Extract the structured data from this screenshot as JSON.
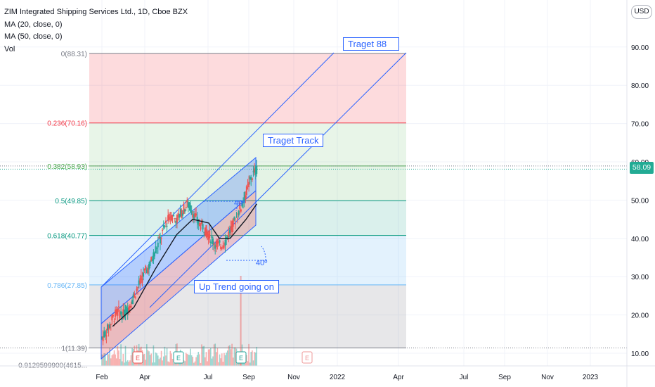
{
  "header": {
    "symbol_line": "ZIM Integrated Shipping Services Ltd., 1D, Cboe BZX",
    "ma20": "MA (20, close, 0)",
    "ma50": "MA (50, close, 0)",
    "vol": "Vol",
    "currency": "USD"
  },
  "last_price": "58.09",
  "annotations": {
    "target88": "Traget 88",
    "target_track": "Traget Track",
    "up_trend": "Up Trend going on",
    "angle_top": "40º",
    "angle_bottom": "40º"
  },
  "colors": {
    "up": "#26a69a",
    "down": "#ef5350",
    "ma": "#131722",
    "channel_line": "#2962ff",
    "fib_0": "#787b86",
    "fib_0236": "#f23645",
    "fib_0382": "#4caf50",
    "fib_05": "#089981",
    "fib_0618": "#089981",
    "fib_0786": "#64b5f6",
    "fib_1": "#787b86"
  },
  "chart_data": {
    "type": "candlestick",
    "y_axis": {
      "ticks": [
        "10.00",
        "20.00",
        "30.00",
        "40.00",
        "50.00",
        "60.00",
        "70.00",
        "80.00",
        "90.00"
      ],
      "range": [
        7,
        97
      ]
    },
    "x_axis": {
      "ticks": [
        "Feb",
        "Apr",
        "Jul",
        "Sep",
        "Nov",
        "2022",
        "Apr",
        "Jul",
        "Sep",
        "Nov",
        "2023"
      ]
    },
    "fib_levels": [
      {
        "label": "0(88.31)",
        "value": 88.31
      },
      {
        "label": "0.236(70.16)",
        "value": 70.16
      },
      {
        "label": "0.382(58.93)",
        "value": 58.93
      },
      {
        "label": "0.5(49.85)",
        "value": 49.85
      },
      {
        "label": "0.618(40.77)",
        "value": 40.77
      },
      {
        "label": "0.786(27.85)",
        "value": 27.85
      },
      {
        "label": "1(11.39)",
        "value": 11.39
      },
      {
        "label": "0.9129599900(4615...",
        "value": 7.0
      }
    ],
    "price_path": [
      [
        0,
        14
      ],
      [
        0.05,
        16
      ],
      [
        0.1,
        19
      ],
      [
        0.15,
        21
      ],
      [
        0.2,
        20
      ],
      [
        0.25,
        22
      ],
      [
        0.3,
        25
      ],
      [
        0.35,
        28
      ],
      [
        0.4,
        31
      ],
      [
        0.45,
        33
      ],
      [
        0.5,
        37
      ],
      [
        0.55,
        40
      ],
      [
        0.6,
        44
      ],
      [
        0.65,
        46
      ],
      [
        0.7,
        45
      ],
      [
        0.75,
        47
      ],
      [
        0.8,
        49
      ],
      [
        0.85,
        47
      ],
      [
        0.9,
        44
      ],
      [
        0.95,
        43
      ],
      [
        1.0,
        41
      ],
      [
        1.05,
        39
      ],
      [
        1.1,
        38
      ],
      [
        1.15,
        39
      ],
      [
        1.2,
        42
      ],
      [
        1.25,
        45
      ],
      [
        1.3,
        48
      ],
      [
        1.35,
        52
      ],
      [
        1.4,
        56
      ],
      [
        1.45,
        58.09
      ]
    ],
    "ma_path": [
      [
        0.1,
        17
      ],
      [
        0.3,
        22
      ],
      [
        0.5,
        32
      ],
      [
        0.7,
        41
      ],
      [
        0.85,
        45
      ],
      [
        1.0,
        44
      ],
      [
        1.1,
        40
      ],
      [
        1.2,
        40
      ],
      [
        1.35,
        45
      ],
      [
        1.45,
        49
      ]
    ],
    "last_value": 58.09
  }
}
